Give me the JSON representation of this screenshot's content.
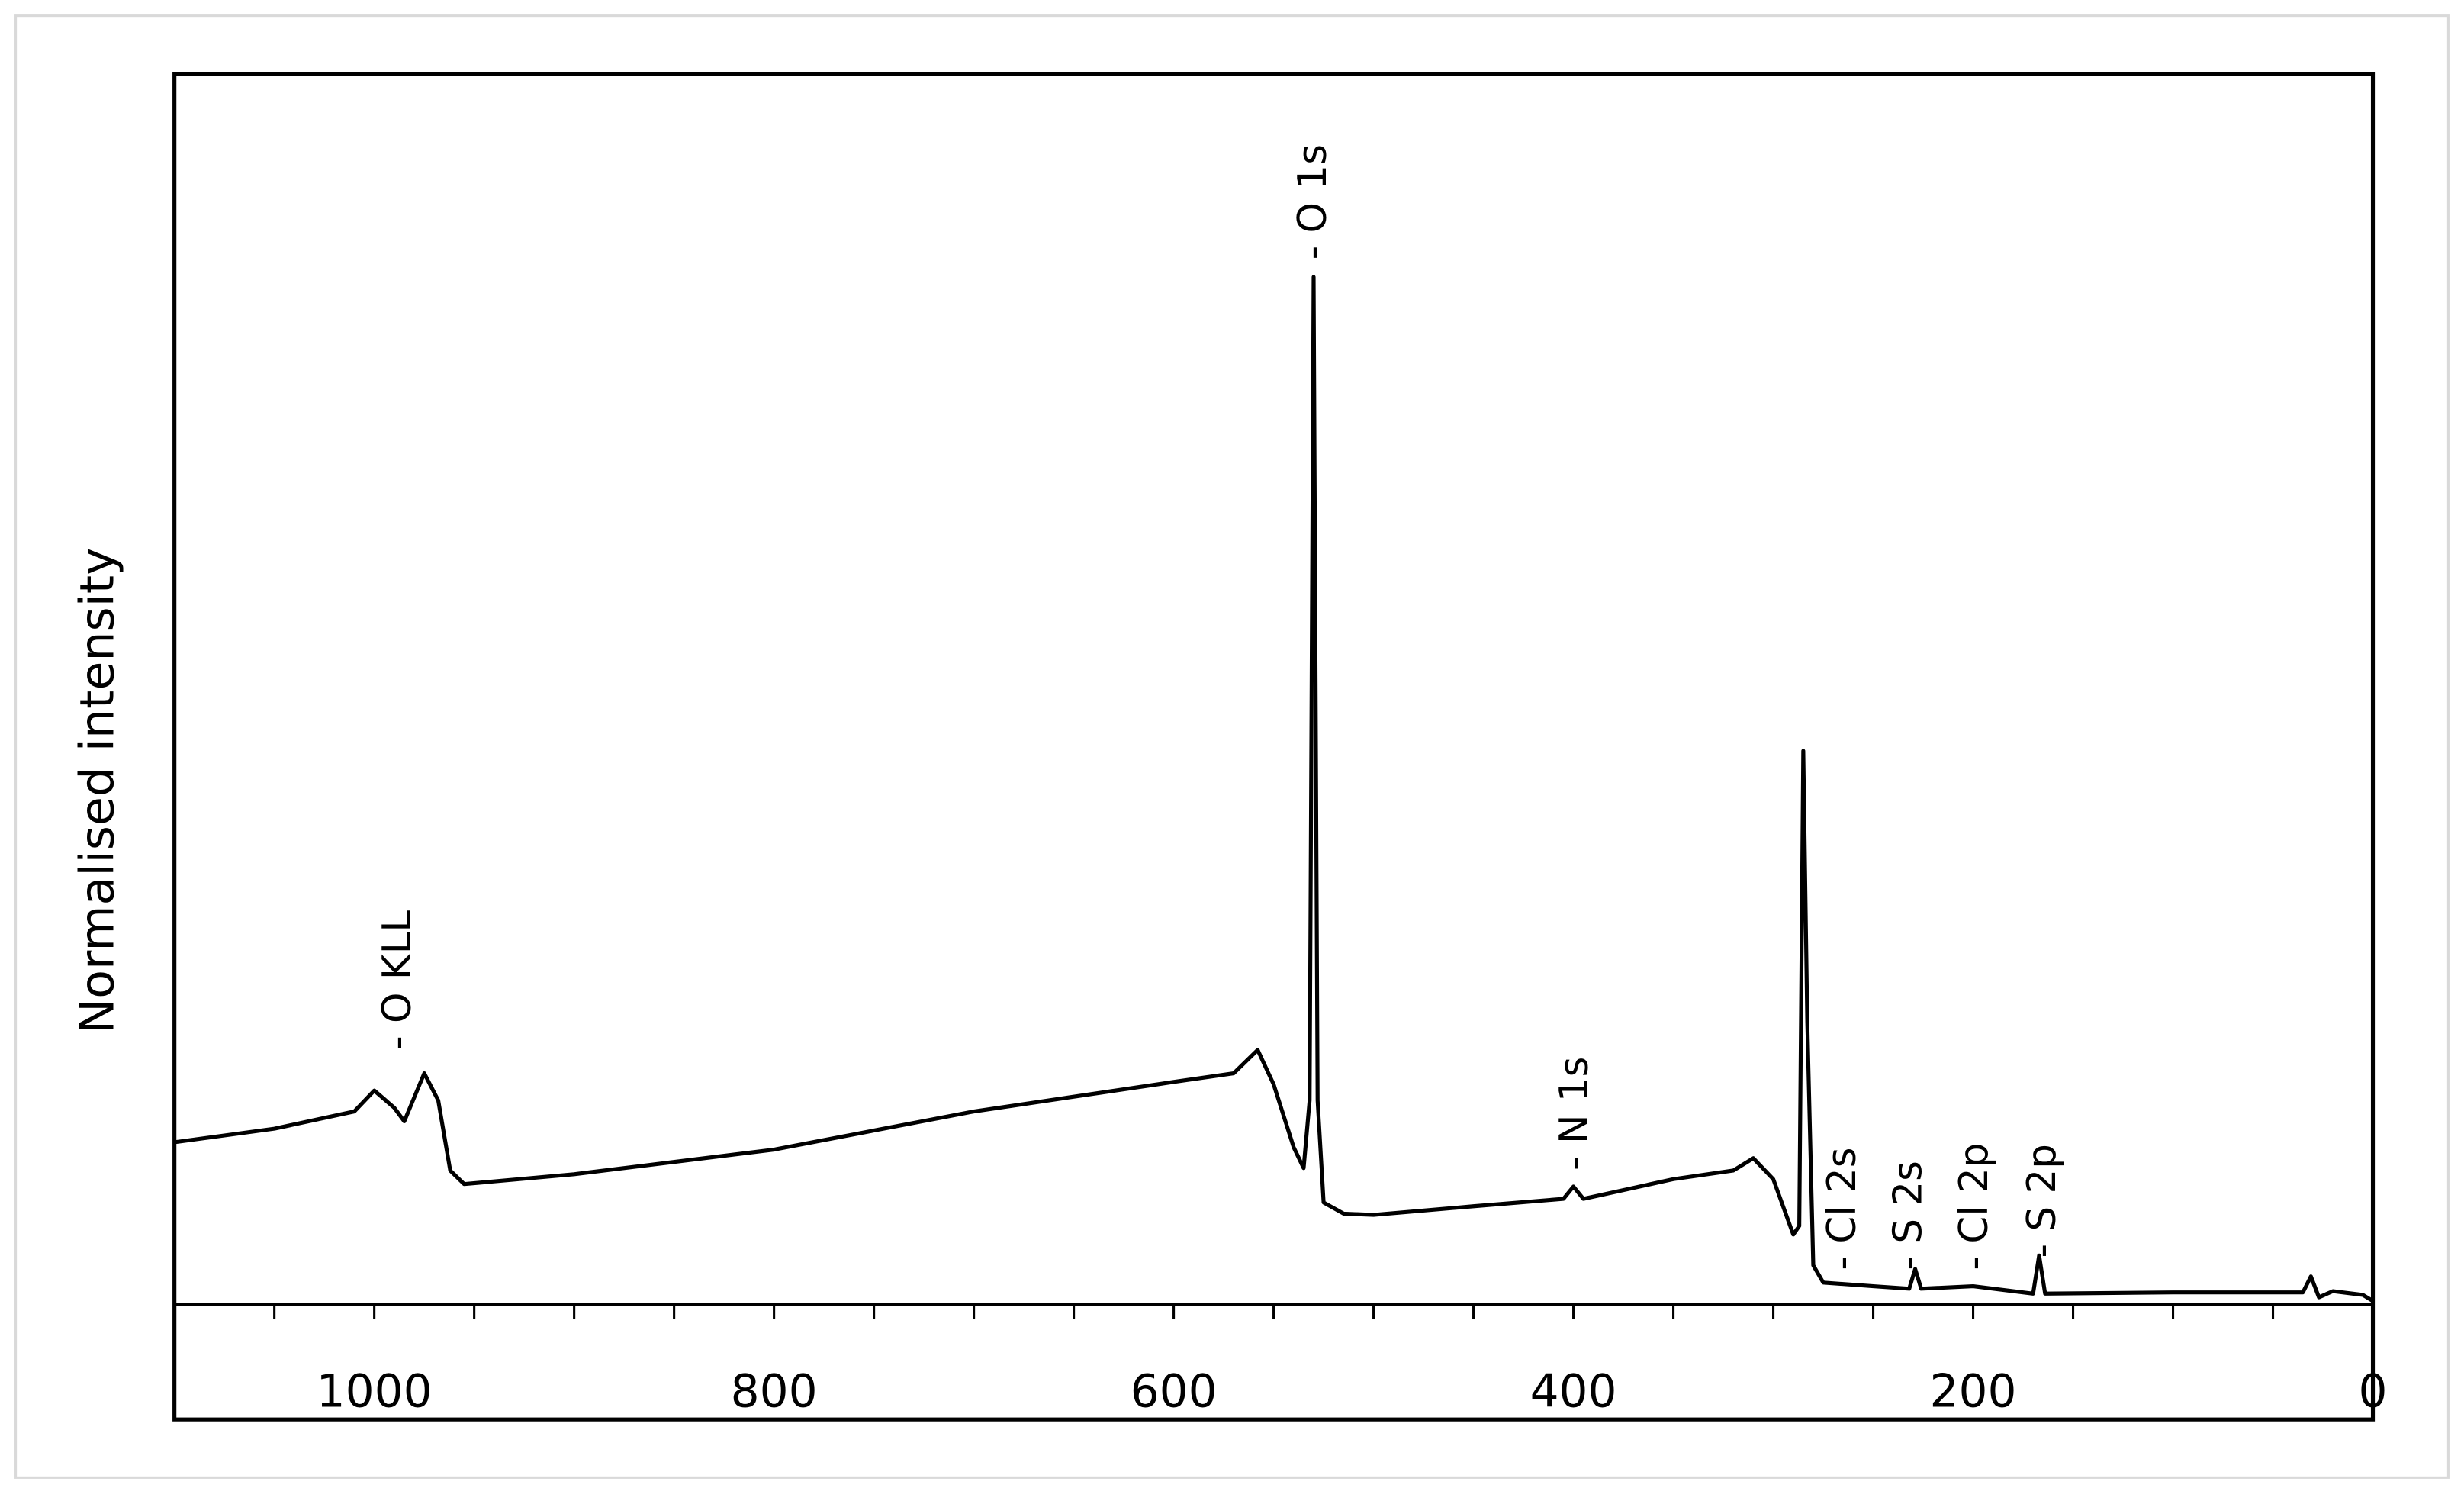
{
  "chart_data": {
    "type": "line",
    "ylabel": "Normalised intensity",
    "xlim": [
      1100,
      0
    ],
    "xticks": [
      1000,
      800,
      600,
      400,
      200,
      0
    ],
    "xminorticks": [
      1050,
      950,
      900,
      850,
      750,
      700,
      650,
      550,
      500,
      450,
      350,
      300,
      250,
      150,
      100,
      50
    ],
    "ylim": [
      0,
      100
    ],
    "series": [
      {
        "color": "#000000",
        "x": [
          1100,
          1050,
          1010,
          1000,
          990,
          985,
          975,
          968,
          962,
          955,
          900,
          800,
          700,
          600,
          570,
          558,
          550,
          540,
          535,
          532,
          530,
          528,
          525,
          515,
          500,
          450,
          405,
          400,
          395,
          350,
          320,
          310,
          300,
          290,
          287,
          285,
          283,
          280,
          275,
          250,
          232,
          229,
          226,
          200,
          170,
          167,
          164,
          100,
          35,
          31,
          27,
          20,
          5,
          0
        ],
        "values": [
          13.2,
          14.3,
          15.7,
          17.4,
          16.0,
          14.9,
          18.8,
          16.6,
          10.9,
          9.8,
          10.6,
          12.6,
          15.7,
          18.1,
          18.8,
          20.7,
          17.9,
          12.8,
          11.1,
          16.6,
          83.5,
          16.6,
          8.3,
          7.4,
          7.3,
          8.0,
          8.6,
          9.6,
          8.6,
          10.2,
          10.9,
          11.9,
          10.2,
          5.7,
          6.4,
          45.0,
          23.0,
          3.2,
          1.8,
          1.5,
          1.3,
          2.9,
          1.3,
          1.5,
          0.9,
          4.0,
          0.9,
          1.0,
          1.0,
          2.3,
          0.6,
          1.1,
          0.8,
          0.3
        ]
      }
    ],
    "annotations": [
      {
        "text": "- O KLL",
        "x": 989,
        "y": 20.7
      },
      {
        "text": "- O 1s",
        "x": 531,
        "y": 84.9
      },
      {
        "text": "- N 1s",
        "x": 400,
        "y": 10.9
      },
      {
        "text": "- Cl 2s",
        "x": 266,
        "y": 2.8
      },
      {
        "text": "- S 2s",
        "x": 233,
        "y": 2.8
      },
      {
        "text": "- Cl 2p",
        "x": 200,
        "y": 2.8
      },
      {
        "text": "- S 2p",
        "x": 166,
        "y": 3.8
      }
    ]
  }
}
